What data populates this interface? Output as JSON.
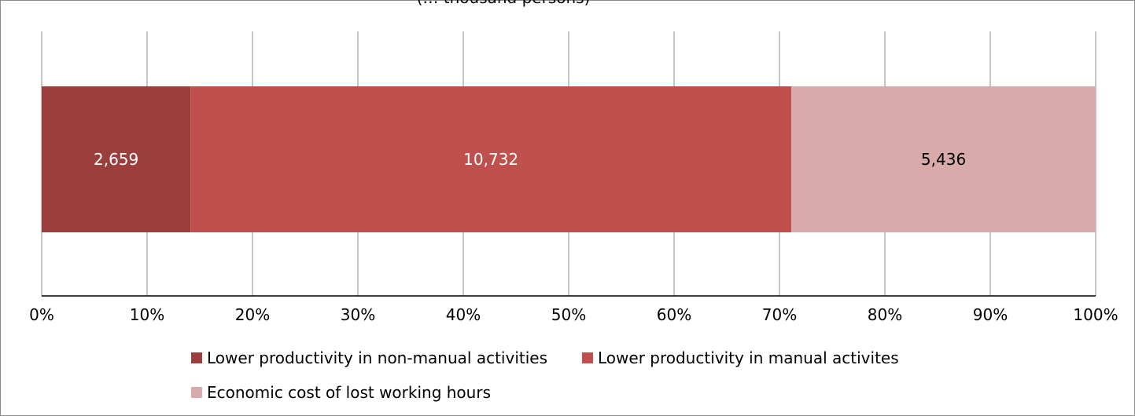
{
  "chart_data": {
    "type": "bar",
    "orientation": "horizontal",
    "stacked": "percent",
    "title": "(… thousand persons)",
    "categories": [
      ""
    ],
    "series": [
      {
        "name": "Lower productivity in non-manual activities",
        "values": [
          2659
        ],
        "label": "2,659",
        "color": "#9c3f3c",
        "label_color": "#ffffff"
      },
      {
        "name": "Lower productivity in manual activites",
        "values": [
          10732
        ],
        "label": "10,732",
        "color": "#c0504d",
        "label_color": "#ffffff"
      },
      {
        "name": "Economic cost of lost working hours",
        "values": [
          5436
        ],
        "label": "5,436",
        "color": "#d9aaaa",
        "label_color": "#000000"
      }
    ],
    "xlim": [
      0,
      100
    ],
    "xticks": [
      "0%",
      "10%",
      "20%",
      "30%",
      "40%",
      "50%",
      "60%",
      "70%",
      "80%",
      "90%",
      "100%"
    ],
    "grid": true,
    "legend_position": "bottom"
  }
}
